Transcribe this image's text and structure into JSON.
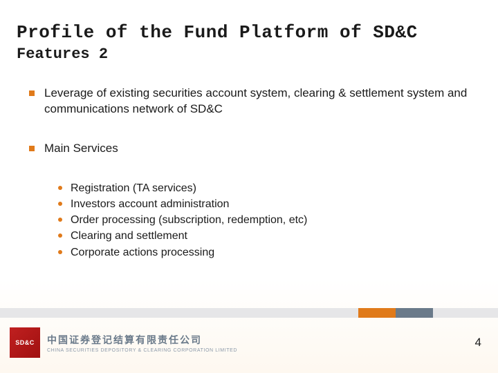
{
  "title": {
    "main": "Profile of  the Fund Platform of SD&C",
    "sub": "Features 2"
  },
  "bullets": [
    {
      "text": "Leverage of existing securities account system, clearing & settlement system and communications network of SD&C",
      "children": []
    },
    {
      "text": "Main Services",
      "children": [
        "Registration (TA services)",
        "Investors account administration",
        "Order processing (subscription, redemption, etc)",
        "Clearing and settlement",
        "Corporate actions processing"
      ]
    }
  ],
  "footer": {
    "logo_abbr": "SD&C",
    "company_cn": "中国证券登记结算有限责任公司",
    "company_en": "CHINA SECURITIES DEPOSITORY & CLEARING CORPORATION LIMITED",
    "page_number": "4"
  },
  "colors": {
    "accent": "#e07a1a",
    "logo_bg": "#b01818",
    "footer_gray": "#e6e6e8",
    "footer_blue": "#6a7a8a",
    "text": "#1a1a1a"
  }
}
